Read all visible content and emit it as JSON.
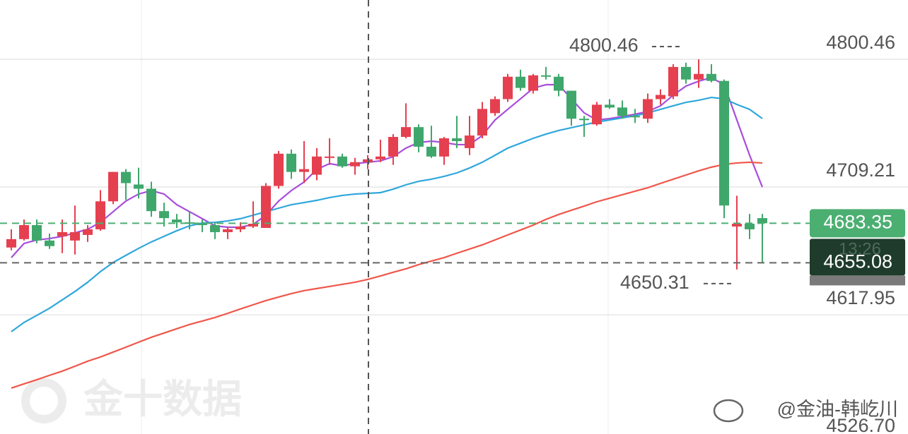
{
  "chart_data": {
    "type": "candlestick",
    "open": [
      4666,
      4672,
      4682,
      4671,
      4674,
      4671,
      4675,
      4679,
      4699,
      4720,
      4711,
      4708,
      4692,
      4686,
      4684,
      4683,
      4682,
      4677,
      4679,
      4681,
      4680,
      4710,
      4733,
      4720,
      4718,
      4731,
      4731,
      4724,
      4727,
      4729,
      4731,
      4745,
      4752,
      4738,
      4731,
      4744,
      4737,
      4746,
      4762,
      4772,
      4788,
      4778,
      4789,
      4788,
      4778,
      4758,
      4754,
      4768,
      4766,
      4760,
      4758,
      4772,
      4774,
      4795,
      4786,
      4790,
      4785,
      4681,
      4683,
      4687
    ],
    "high": [
      4679,
      4686,
      4686,
      4676,
      4686,
      4696,
      4682,
      4707,
      4720,
      4722,
      4723,
      4713,
      4698,
      4690,
      4692,
      4686,
      4684,
      4681,
      4684,
      4699,
      4712,
      4735,
      4736,
      4742,
      4737,
      4744,
      4733,
      4730,
      4732,
      4743,
      4747,
      4769,
      4754,
      4753,
      4745,
      4760,
      4760,
      4770,
      4774,
      4790,
      4793,
      4790,
      4795,
      4790,
      4778,
      4760,
      4770,
      4772,
      4771,
      4765,
      4776,
      4779,
      4797,
      4798,
      4800.46,
      4797,
      4786,
      4703,
      4690,
      4690
    ],
    "low": [
      4664,
      4671,
      4669,
      4665,
      4662,
      4661,
      4670,
      4678,
      4697,
      4700,
      4701,
      4688,
      4681,
      4680,
      4679,
      4677,
      4672,
      4672,
      4677,
      4680,
      4680,
      4708,
      4715,
      4712,
      4714,
      4725,
      4723,
      4718,
      4722,
      4727,
      4725,
      4744,
      4734,
      4730,
      4725,
      4737,
      4732,
      4744,
      4760,
      4770,
      4778,
      4776,
      4786,
      4774,
      4753,
      4745,
      4753,
      4765,
      4758,
      4755,
      4755,
      4768,
      4772,
      4783,
      4780,
      4784,
      4687,
      4650.31,
      4672,
      4655
    ],
    "close": [
      4672,
      4682,
      4671,
      4667,
      4677,
      4677,
      4679,
      4699,
      4720,
      4712,
      4708,
      4692,
      4687,
      4684,
      4683,
      4682,
      4677,
      4679,
      4681,
      4683,
      4710,
      4733,
      4720,
      4722,
      4731,
      4731,
      4724,
      4727,
      4729,
      4731,
      4745,
      4752,
      4738,
      4731,
      4744,
      4742,
      4746,
      4765,
      4772,
      4788,
      4780,
      4789,
      4788,
      4778,
      4758,
      4757,
      4768,
      4766,
      4760,
      4759,
      4772,
      4775,
      4795,
      4786,
      4790,
      4785,
      4696,
      4683,
      4679,
      4683.35
    ],
    "up_color": "#e5404f",
    "down_color": "#3fa76b",
    "ma_lines": [
      {
        "color": "#a84ddc",
        "values": [
          4658.8,
          4668.9,
          4671.4,
          4672.4,
          4674,
          4676.5,
          4679,
          4684,
          4691.6,
          4699.2,
          4704.2,
          4706.7,
          4704.2,
          4696.6,
          4691.6,
          4686.6,
          4681.5,
          4680.5,
          4680.5,
          4682.5,
          4689.1,
          4699.2,
          4706.7,
          4712.8,
          4721.8,
          4725.9,
          4724.4,
          4725.9,
          4726.9,
          4727.9,
          4730.9,
          4737,
          4741,
          4742,
          4741,
          4739.5,
          4739.5,
          4746,
          4757.1,
          4764.7,
          4772.2,
          4779.8,
          4782.3,
          4782.3,
          4772.2,
          4762.2,
          4757.1,
          4758.1,
          4759.6,
          4761.2,
          4763.2,
          4767.2,
          4774.8,
          4781.3,
          4784.8,
          4787.4,
          4782.3,
          4757.1,
          4732,
          4709.2
        ]
      },
      {
        "color": "#2fa7dc",
        "values": [
          4605.9,
          4612.5,
          4617.5,
          4622.6,
          4628.6,
          4634.6,
          4641.2,
          4648.8,
          4655.3,
          4660.4,
          4665.4,
          4670,
          4674,
          4678,
          4681.5,
          4683.5,
          4684,
          4685,
          4686.6,
          4689.1,
          4691.6,
          4694.1,
          4696.6,
          4698.1,
          4699.7,
          4701.7,
          4703.2,
          4704.2,
          4704.7,
          4705.2,
          4707.7,
          4710.8,
          4713.3,
          4714.8,
          4716.8,
          4719.3,
          4722.8,
          4726.9,
          4731.9,
          4737,
          4740.5,
          4744,
          4747,
          4749.6,
          4751.6,
          4753.6,
          4755.6,
          4757.1,
          4758.6,
          4760.1,
          4762.2,
          4764.7,
          4767.2,
          4769.7,
          4771.2,
          4773.2,
          4772.2,
          4768.2,
          4764.7,
          4758.1
        ]
      },
      {
        "color": "#f0564a",
        "values": [
          4565.6,
          4568.6,
          4571.6,
          4574.7,
          4577.7,
          4581.2,
          4584.8,
          4587.8,
          4591.3,
          4594.8,
          4598.4,
          4601.9,
          4604.9,
          4608,
          4611,
          4613.5,
          4616,
          4619,
          4622.1,
          4625.1,
          4628.1,
          4630.6,
          4633.1,
          4635.2,
          4636.7,
          4638.2,
          4639.7,
          4641.2,
          4643.2,
          4645.7,
          4648.3,
          4650.8,
          4653.8,
          4656.3,
          4658.8,
          4661.9,
          4664.9,
          4667.9,
          4671.4,
          4675,
          4678.5,
          4682,
          4686.1,
          4689.6,
          4692.6,
          4695.6,
          4698.7,
          4701.2,
          4703.7,
          4706.2,
          4708.7,
          4711.8,
          4714.8,
          4717.8,
          4720.8,
          4723.4,
          4725.4,
          4726.4,
          4726.9,
          4726.4
        ]
      }
    ],
    "ylim": [
      4532.8,
      4842.8
    ],
    "yticks": [
      4800.46,
      4709.21,
      4617.95,
      {
        "value": 4526.7,
        "label": "4526.70"
      }
    ],
    "grid": true,
    "high_marker": 4800.46,
    "low_marker": 4650.31,
    "last_price": 4683.35,
    "last_price_color": "#4caf72",
    "ref_price": 4655.08,
    "countdown": "13:26",
    "watermark": "金十数据",
    "credit": "@金油-韩屹川"
  }
}
